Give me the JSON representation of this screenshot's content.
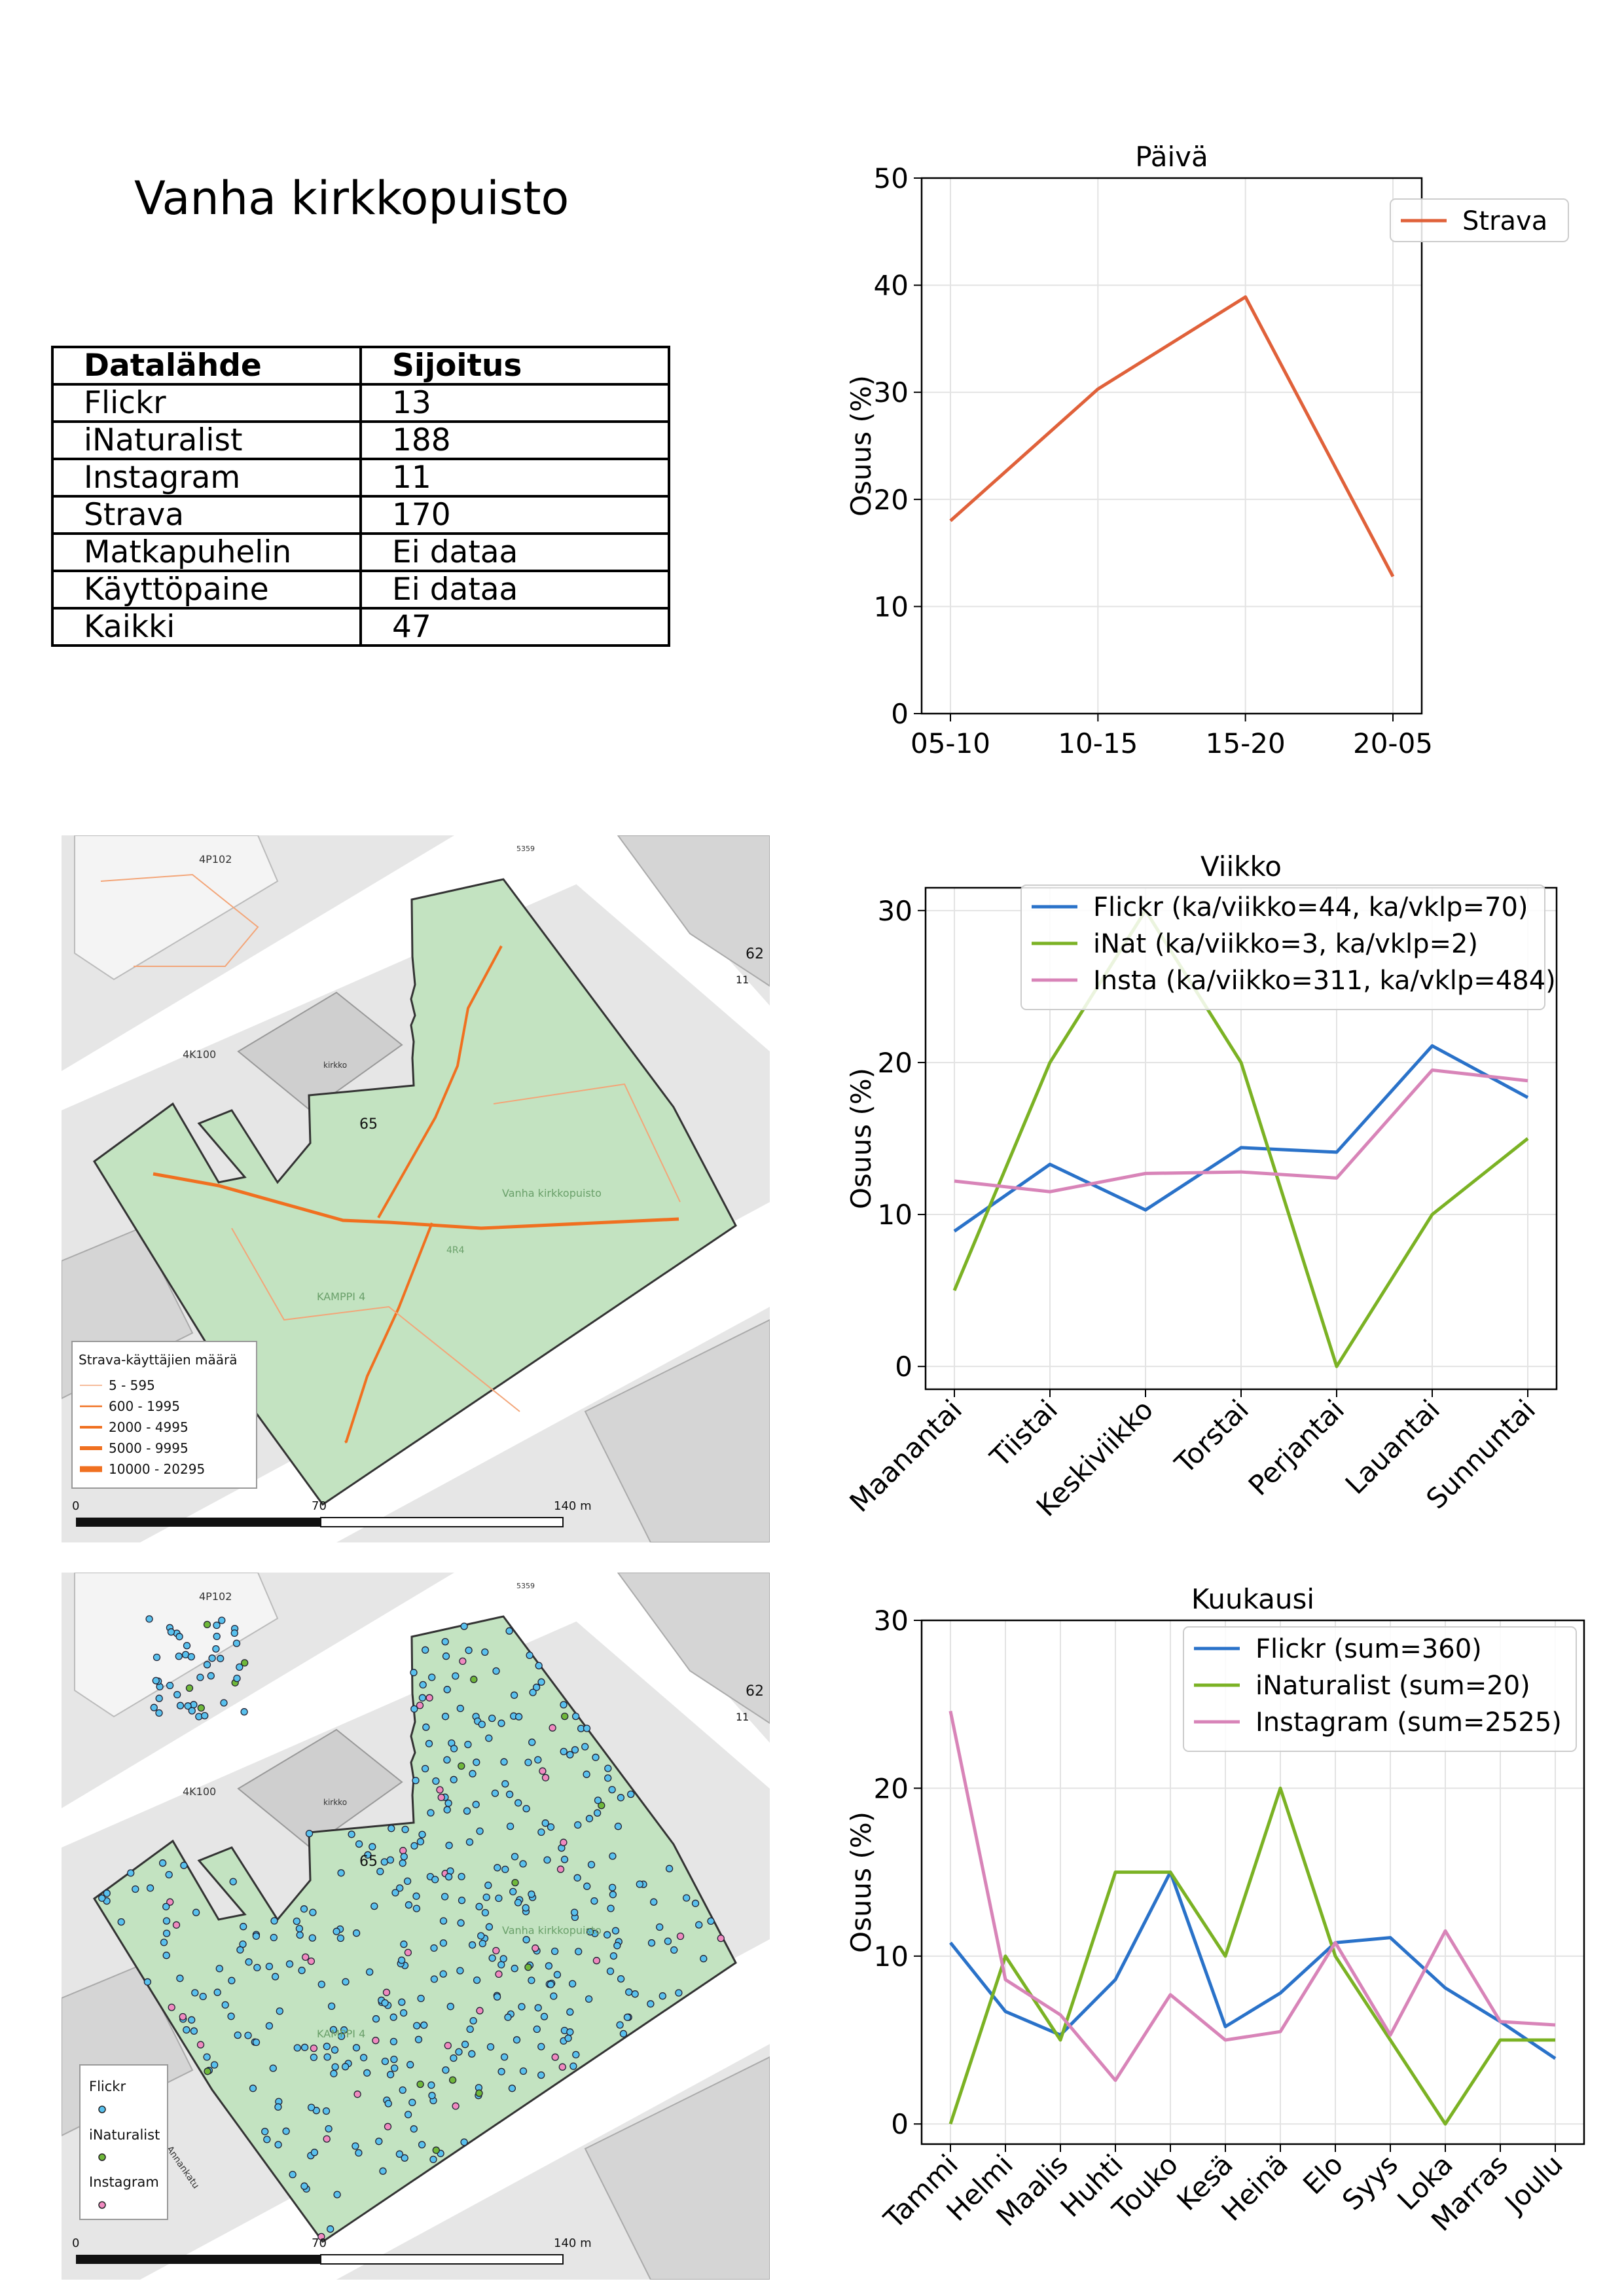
{
  "page": {
    "title": "Vanha kirkkopuisto"
  },
  "table": {
    "headers": [
      "Datalähde",
      "Sijoitus"
    ],
    "rows": [
      [
        "Flickr",
        "13"
      ],
      [
        "iNaturalist",
        "188"
      ],
      [
        "Instagram",
        "11"
      ],
      [
        "Strava",
        "170"
      ],
      [
        "Matkapuhelin",
        "Ei dataa"
      ],
      [
        "Käyttöpaine",
        "Ei dataa"
      ],
      [
        "Kaikki",
        "47"
      ]
    ]
  },
  "chart_data": [
    {
      "id": "day",
      "type": "line",
      "title": "Päivä",
      "xlabel": "",
      "ylabel": "Osuus (%)",
      "categories": [
        "05-10",
        "10-15",
        "15-20",
        "20-05"
      ],
      "ylim": [
        0,
        50
      ],
      "yticks": [
        0,
        10,
        20,
        30,
        40,
        50
      ],
      "grid": true,
      "legend": "top-right",
      "series": [
        {
          "name": "Strava",
          "color": "#e0613a",
          "values": [
            18.0,
            30.3,
            38.9,
            12.8
          ]
        }
      ]
    },
    {
      "id": "week",
      "type": "line",
      "title": "Viikko",
      "xlabel": "",
      "ylabel": "Osuus (%)",
      "categories": [
        "Maanantai",
        "Tiistai",
        "Keskiviikko",
        "Torstai",
        "Perjantai",
        "Lauantai",
        "Sunnuntai"
      ],
      "ylim": [
        -1.5,
        31.5
      ],
      "yticks": [
        0,
        10,
        20,
        30
      ],
      "grid": true,
      "legend": "top",
      "series": [
        {
          "name": "Flickr (ka/viikko=44, ka/vklp=70)",
          "color": "#2a72c9",
          "values": [
            8.9,
            13.3,
            10.3,
            14.4,
            14.1,
            21.1,
            17.7
          ]
        },
        {
          "name": "iNat (ka/viikko=3, ka/vklp=2)",
          "color": "#7bb224",
          "values": [
            5.0,
            20.0,
            30.0,
            20.0,
            0.0,
            10.0,
            15.0
          ]
        },
        {
          "name": "Insta (ka/viikko=311, ka/vklp=484)",
          "color": "#d884b8",
          "values": [
            12.2,
            11.5,
            12.7,
            12.8,
            12.4,
            19.5,
            18.8
          ]
        }
      ]
    },
    {
      "id": "month",
      "type": "line",
      "title": "Kuukausi",
      "xlabel": "",
      "ylabel": "Osuus (%)",
      "categories": [
        "Tammi",
        "Helmi",
        "Maalis",
        "Huhti",
        "Touko",
        "Kesä",
        "Heinä",
        "Elo",
        "Syys",
        "Loka",
        "Marras",
        "Joulu"
      ],
      "ylim": [
        -1.2,
        30
      ],
      "yticks": [
        0,
        10,
        20,
        30
      ],
      "grid": true,
      "legend": "top-right",
      "series": [
        {
          "name": "Flickr (sum=360)",
          "color": "#2a72c9",
          "values": [
            10.8,
            6.7,
            5.3,
            8.6,
            15.0,
            5.8,
            7.8,
            10.8,
            11.1,
            8.1,
            6.1,
            3.9
          ]
        },
        {
          "name": "iNaturalist (sum=20)",
          "color": "#7bb224",
          "values": [
            0.0,
            10.0,
            5.0,
            15.0,
            15.0,
            10.0,
            20.0,
            10.0,
            5.0,
            0.0,
            5.0,
            5.0
          ]
        },
        {
          "name": "Instagram (sum=2525)",
          "color": "#d884b8",
          "values": [
            24.6,
            8.6,
            6.5,
            2.6,
            7.7,
            5.0,
            5.5,
            10.8,
            5.3,
            11.5,
            6.1,
            5.9
          ]
        }
      ]
    }
  ],
  "map1": {
    "legend_title": "Strava-käyttäjien määrä",
    "legend_items": [
      "5 - 595",
      "600 - 1995",
      "2000 - 4995",
      "5000 - 9995",
      "10000 - 20295"
    ],
    "scale": [
      "0",
      "70",
      "140 m"
    ],
    "labels": {
      "park": "Vanha kirkkopuisto",
      "block": "KAMPPI 4",
      "code": "4P102",
      "code2": "4K100",
      "kirkko": "kirkko",
      "num65": "65",
      "n62": "62",
      "n11": "11",
      "n5359": "5359",
      "n4r4": "4R4"
    }
  },
  "map2": {
    "legend_items": [
      "Flickr",
      "iNaturalist",
      "Instagram"
    ],
    "scale": [
      "0",
      "70",
      "140 m"
    ],
    "labels": {
      "park": "Vanha kirkkopuisto",
      "block": "KAMPPI 4",
      "code": "4P102",
      "code2": "4K100",
      "kirkko": "kirkko",
      "num65": "65",
      "n62": "62",
      "n11": "11",
      "n5359": "5359",
      "street": "Annankatu"
    }
  }
}
